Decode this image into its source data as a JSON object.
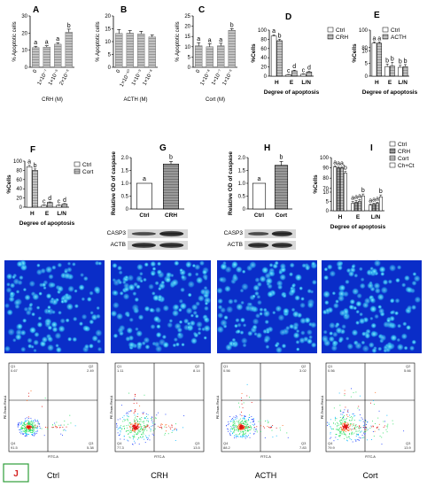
{
  "chart_data": [
    {
      "id": "A",
      "type": "bar",
      "panel_label": "A",
      "ylabel": "% Apoptotic cells",
      "xlabel": "CRH (M)",
      "categories": [
        "0",
        "1×10⁻⁷",
        "1×10⁻⁶",
        "2×10⁻⁶"
      ],
      "values": [
        11.5,
        11.8,
        13.5,
        20.5
      ],
      "errors": [
        0.8,
        0.8,
        0.9,
        1.8
      ],
      "letters": [
        "a",
        "a",
        "a",
        "b"
      ],
      "ylim": [
        0,
        30
      ],
      "yticks": [
        "0",
        "10",
        "20",
        "30"
      ]
    },
    {
      "id": "B",
      "type": "bar",
      "panel_label": "B",
      "ylabel": "% Apoptotic cells",
      "xlabel": "ACTH (M)",
      "categories": [
        "0",
        "1×10⁻¹⁰",
        "1×10⁻⁹",
        "1×10⁻⁸"
      ],
      "values": [
        13.2,
        13.3,
        13.0,
        11.8
      ],
      "errors": [
        1.5,
        1.0,
        1.0,
        0.8
      ],
      "letters": [],
      "ylim": [
        0,
        20
      ],
      "yticks": [
        "0",
        "5",
        "10",
        "15",
        "20"
      ]
    },
    {
      "id": "C",
      "type": "bar",
      "panel_label": "C",
      "ylabel": "% Apoptotic cells",
      "xlabel": "Cort (M)",
      "categories": [
        "0",
        "1×10⁻⁸",
        "1×10⁻⁷",
        "1×10⁻⁶"
      ],
      "values": [
        10.5,
        10.0,
        10.5,
        18.0
      ],
      "errors": [
        1.5,
        1.5,
        1.2,
        0.8
      ],
      "letters": [
        "a",
        "a",
        "a",
        "b"
      ],
      "ylim": [
        0,
        25
      ],
      "yticks": [
        "0",
        "5",
        "10",
        "15",
        "20",
        "25"
      ]
    },
    {
      "id": "D",
      "type": "grouped_bar",
      "panel_label": "D",
      "ylabel": "%Cells",
      "xlabel": "Degree of apoptosis",
      "categories": [
        "H",
        "E",
        "L/N"
      ],
      "series": [
        {
          "name": "Ctrl",
          "values": [
            87,
            3,
            4
          ],
          "errors": [
            3,
            1,
            1
          ],
          "letters": [
            "a",
            "c",
            "c"
          ]
        },
        {
          "name": "CRH",
          "values": [
            77,
            11.5,
            9
          ],
          "errors": [
            3,
            1.5,
            1.5
          ],
          "letters": [
            "b",
            "d",
            "d"
          ]
        }
      ],
      "ylim": [
        0,
        100
      ],
      "yticks": [
        "0",
        "20",
        "40",
        "60",
        "80",
        "100"
      ]
    },
    {
      "id": "E",
      "type": "grouped_bar",
      "panel_label": "E",
      "ylabel": "%Cells",
      "xlabel": "Degree of apoptosis",
      "categories": [
        "H",
        "E",
        "L/N"
      ],
      "series": [
        {
          "name": "Ctrl",
          "values": [
            85,
            3.8,
            3.5
          ],
          "errors": [
            1.5,
            1.0,
            0.8
          ],
          "letters": [
            "a",
            "b",
            "b"
          ]
        },
        {
          "name": "ACTH",
          "values": [
            85,
            4.0,
            3.8
          ],
          "errors": [
            1.5,
            1.5,
            0.8
          ],
          "letters": [
            "a",
            "b",
            "b"
          ]
        }
      ],
      "ylim": [
        0,
        100
      ],
      "yticks": [
        "0",
        "5",
        "10",
        "80",
        "100"
      ],
      "yaxis_break": true
    },
    {
      "id": "F",
      "type": "grouped_bar",
      "panel_label": "F",
      "ylabel": "%Cells",
      "xlabel": "Degree of apoptosis",
      "categories": [
        "H",
        "E",
        "L/N"
      ],
      "series": [
        {
          "name": "Ctrl",
          "values": [
            88,
            4,
            4
          ],
          "errors": [
            3,
            1,
            1
          ],
          "letters": [
            "a",
            "c",
            "c"
          ]
        },
        {
          "name": "Cort",
          "values": [
            80,
            10.5,
            7
          ],
          "errors": [
            3,
            1,
            1
          ],
          "letters": [
            "b",
            "d",
            "d"
          ]
        }
      ],
      "ylim": [
        0,
        100
      ],
      "yticks": [
        "0",
        "20",
        "40",
        "60",
        "80",
        "100"
      ]
    },
    {
      "id": "G",
      "type": "bar",
      "panel_label": "G",
      "ylabel": "Relative OD of caspase",
      "categories": [
        "Ctrl",
        "CRH"
      ],
      "values": [
        1.0,
        1.75
      ],
      "errors": [
        0,
        0.1
      ],
      "letters": [
        "a",
        "b"
      ],
      "ylim": [
        0,
        2.0
      ],
      "yticks": [
        "0",
        "0.5",
        "1.0",
        "1.5",
        "2.0"
      ],
      "blot_labels": [
        "CASP3",
        "ACTB"
      ]
    },
    {
      "id": "H",
      "type": "bar",
      "panel_label": "H",
      "ylabel": "Relative OD of caspase",
      "categories": [
        "Ctrl",
        "Cort"
      ],
      "values": [
        1.0,
        1.7
      ],
      "errors": [
        0,
        0.15
      ],
      "letters": [
        "a",
        "b"
      ],
      "ylim": [
        0,
        2.0
      ],
      "yticks": [
        "0",
        "0.5",
        "1.0",
        "1.5",
        "2.0"
      ],
      "blot_labels": [
        "CASP3",
        "ACTB"
      ]
    },
    {
      "id": "I",
      "type": "grouped_bar",
      "panel_label": "I",
      "ylabel": "%Cells",
      "xlabel": "Degree of apoptosis",
      "categories": [
        "H",
        "E",
        "L/N"
      ],
      "series": [
        {
          "name": "Ctrl",
          "values": [
            91,
            4,
            3
          ],
          "errors": [
            1,
            1,
            0.5
          ],
          "letters": [
            "a",
            "a",
            "a"
          ]
        },
        {
          "name": "CRH",
          "values": [
            90,
            4.5,
            3.5
          ],
          "errors": [
            1,
            1,
            0.5
          ],
          "letters": [
            "a",
            "a",
            "a"
          ]
        },
        {
          "name": "Cort",
          "values": [
            90,
            5,
            4
          ],
          "errors": [
            1,
            1,
            0.5
          ],
          "letters": [
            "a",
            "a",
            "a"
          ]
        },
        {
          "name": "Ch+Ct",
          "values": [
            85,
            8,
            7.5
          ],
          "errors": [
            1.5,
            1,
            1
          ],
          "letters": [
            "b",
            "b",
            "b"
          ]
        }
      ],
      "ylim": [
        0,
        100
      ],
      "yticks": [
        "0",
        "5",
        "10",
        "70",
        "80",
        "90",
        "100"
      ],
      "yaxis_break": true
    },
    {
      "id": "J",
      "type": "scatter",
      "panel_label": "J",
      "conditions": [
        "Ctrl",
        "CRH",
        "ACTH",
        "Cort"
      ],
      "flow_xlabel": "FITC-A",
      "flow_ylabel": "PE-Texas Red-A",
      "quadrants": [
        {
          "Q1": "0.67",
          "Q2": "2.49",
          "Q3": "5.38",
          "Q4": "91.5"
        },
        {
          "Q1": "1.11",
          "Q2": "8.14",
          "Q3": "13.5",
          "Q4": "77.3"
        },
        {
          "Q1": "0.56",
          "Q2": "3.02",
          "Q3": "7.83",
          "Q4": "88.2"
        },
        {
          "Q1": "0.56",
          "Q2": "5.66",
          "Q3": "13.9",
          "Q4": "79.9"
        }
      ]
    }
  ],
  "colors": {
    "bar_fill": "#b5b5b5",
    "bar_dark": "#8c8c8c",
    "bar_open": "#ffffff",
    "fluor_bg": "#0a2dc8",
    "fluor_cell": "#3ad2ff",
    "panel_j_border": "#2e9e3a",
    "panel_j_text": "#d42020"
  }
}
